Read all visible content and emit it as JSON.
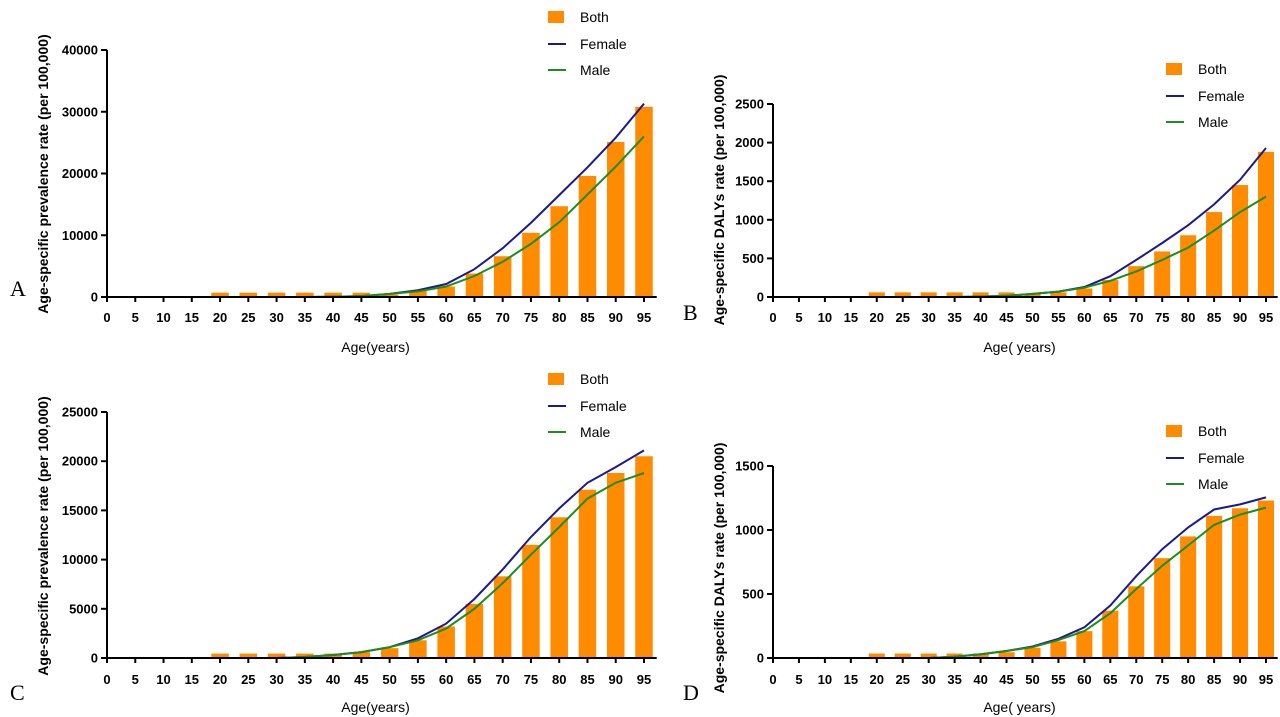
{
  "colors": {
    "both": "#ff8c00",
    "female": "#1a1a8c",
    "male": "#1e8c1e",
    "axis": "#000000"
  },
  "chart_data": [
    {
      "type": "bar",
      "panel_label": "A",
      "ylabel": "Age-specific prevalence rate (per 100,000)",
      "xlabel": "Age(years)",
      "ylim": [
        0,
        40000
      ],
      "yticks": [
        "0",
        "10000",
        "20000",
        "30000",
        "40000"
      ],
      "categories": [
        "0",
        "5",
        "10",
        "15",
        "20",
        "25",
        "30",
        "35",
        "40",
        "45",
        "50",
        "55",
        "60",
        "65",
        "70",
        "75",
        "80",
        "85",
        "90",
        "95"
      ],
      "legend": [
        "Both",
        "Female",
        "Male"
      ],
      "series": [
        {
          "name": "Both",
          "kind": "bar",
          "values": [
            0,
            0,
            0,
            0,
            700,
            700,
            700,
            700,
            700,
            700,
            400,
            1000,
            1700,
            3800,
            6600,
            10400,
            14700,
            19600,
            25100,
            30800
          ]
        },
        {
          "name": "Female",
          "kind": "line",
          "values": [
            0,
            0,
            0,
            0,
            0,
            0,
            0,
            0,
            50,
            150,
            500,
            1100,
            2100,
            4500,
            7900,
            12000,
            16500,
            21000,
            25800,
            31300
          ]
        },
        {
          "name": "Male",
          "kind": "line",
          "values": [
            0,
            0,
            0,
            0,
            0,
            0,
            0,
            0,
            50,
            150,
            500,
            900,
            1700,
            3400,
            5700,
            8600,
            12100,
            16600,
            21100,
            26000
          ]
        }
      ]
    },
    {
      "type": "bar",
      "panel_label": "B",
      "ylabel": "Age-specific DALYs rate (per 100,000)",
      "xlabel": "Age( years)",
      "ylim": [
        0,
        2500
      ],
      "yticks": [
        "0",
        "500",
        "1000",
        "1500",
        "2000",
        "2500"
      ],
      "categories": [
        "0",
        "5",
        "10",
        "15",
        "20",
        "25",
        "30",
        "35",
        "40",
        "45",
        "50",
        "55",
        "60",
        "65",
        "70",
        "75",
        "80",
        "85",
        "90",
        "95"
      ],
      "legend": [
        "Both",
        "Female",
        "Male"
      ],
      "series": [
        {
          "name": "Both",
          "kind": "bar",
          "values": [
            0,
            0,
            0,
            0,
            60,
            60,
            60,
            60,
            60,
            60,
            40,
            60,
            110,
            220,
            400,
            590,
            800,
            1100,
            1450,
            1880
          ]
        },
        {
          "name": "Female",
          "kind": "line",
          "values": [
            0,
            0,
            0,
            0,
            0,
            0,
            0,
            0,
            5,
            15,
            40,
            70,
            130,
            270,
            480,
            700,
            930,
            1200,
            1520,
            1930
          ]
        },
        {
          "name": "Male",
          "kind": "line",
          "values": [
            0,
            0,
            0,
            0,
            0,
            0,
            0,
            0,
            5,
            15,
            40,
            70,
            120,
            210,
            330,
            480,
            640,
            860,
            1100,
            1300
          ]
        }
      ]
    },
    {
      "type": "bar",
      "panel_label": "C",
      "ylabel": "Age-specific prevalence rate (per 100,000)",
      "xlabel": "Age(years)",
      "ylim": [
        0,
        25000
      ],
      "yticks": [
        "0",
        "5000",
        "10000",
        "15000",
        "20000",
        "25000"
      ],
      "categories": [
        "0",
        "5",
        "10",
        "15",
        "20",
        "25",
        "30",
        "35",
        "40",
        "45",
        "50",
        "55",
        "60",
        "65",
        "70",
        "75",
        "80",
        "85",
        "90",
        "95"
      ],
      "legend": [
        "Both",
        "Female",
        "Male"
      ],
      "series": [
        {
          "name": "Both",
          "kind": "bar",
          "values": [
            0,
            0,
            0,
            0,
            450,
            450,
            450,
            450,
            450,
            600,
            1000,
            1800,
            3200,
            5500,
            8300,
            11500,
            14300,
            17100,
            18800,
            20500
          ]
        },
        {
          "name": "Female",
          "kind": "line",
          "values": [
            0,
            0,
            0,
            0,
            0,
            0,
            0,
            100,
            300,
            600,
            1100,
            2000,
            3500,
            6000,
            9000,
            12300,
            15200,
            17800,
            19400,
            21100
          ]
        },
        {
          "name": "Male",
          "kind": "line",
          "values": [
            0,
            0,
            0,
            0,
            0,
            0,
            0,
            100,
            300,
            600,
            1100,
            1800,
            3000,
            5000,
            7600,
            10500,
            13300,
            16200,
            17800,
            18800
          ]
        }
      ]
    },
    {
      "type": "bar",
      "panel_label": "D",
      "ylabel": "Age-specific DALYs rate (per 100,000)",
      "xlabel": "Age( years)",
      "ylim": [
        0,
        1500
      ],
      "yticks": [
        "0",
        "500",
        "1000",
        "1500"
      ],
      "categories": [
        "0",
        "5",
        "10",
        "15",
        "20",
        "25",
        "30",
        "35",
        "40",
        "45",
        "50",
        "55",
        "60",
        "65",
        "70",
        "75",
        "80",
        "85",
        "90",
        "95"
      ],
      "legend": [
        "Both",
        "Female",
        "Male"
      ],
      "series": [
        {
          "name": "Both",
          "kind": "bar",
          "values": [
            0,
            0,
            0,
            0,
            35,
            35,
            35,
            35,
            35,
            45,
            80,
            130,
            210,
            370,
            560,
            780,
            950,
            1110,
            1170,
            1230
          ]
        },
        {
          "name": "Female",
          "kind": "line",
          "values": [
            0,
            0,
            0,
            0,
            0,
            0,
            0,
            10,
            30,
            55,
            90,
            150,
            240,
            410,
            640,
            850,
            1020,
            1160,
            1200,
            1255
          ]
        },
        {
          "name": "Male",
          "kind": "line",
          "values": [
            0,
            0,
            0,
            0,
            0,
            0,
            0,
            10,
            30,
            55,
            85,
            140,
            210,
            350,
            540,
            720,
            880,
            1040,
            1120,
            1175
          ]
        }
      ]
    }
  ]
}
